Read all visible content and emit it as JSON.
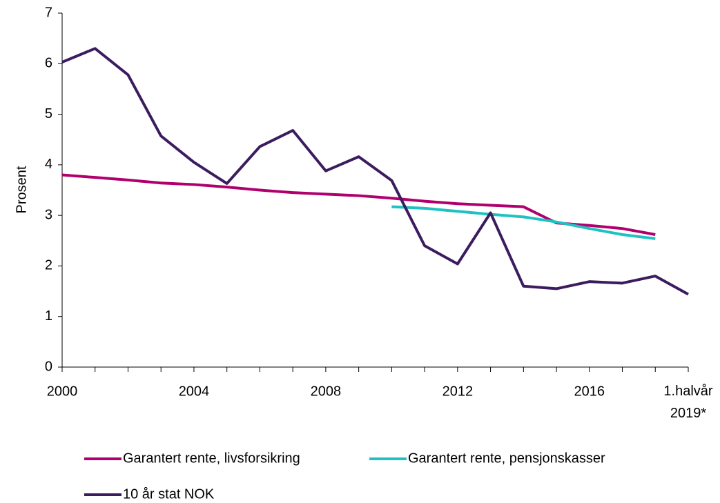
{
  "chart_data": {
    "type": "line",
    "y_label": "Prosent",
    "categories": [
      "2000",
      null,
      null,
      null,
      "2004",
      null,
      null,
      null,
      "2008",
      null,
      null,
      null,
      "2012",
      null,
      null,
      null,
      "2016",
      null,
      null,
      "1.halvår 2019*"
    ],
    "series": [
      {
        "name": "Garantert rente, livsforsikring",
        "color": "#b0006e",
        "values": [
          3.8,
          3.75,
          3.7,
          3.64,
          3.61,
          3.56,
          3.5,
          3.45,
          3.42,
          3.39,
          3.34,
          3.28,
          3.23,
          3.2,
          3.17,
          2.85,
          2.8,
          2.74,
          2.62,
          null
        ]
      },
      {
        "name": "Garantert rente, pensjonskasser",
        "color": "#1fc2c2",
        "values": [
          null,
          null,
          null,
          null,
          null,
          null,
          null,
          null,
          null,
          null,
          3.17,
          3.14,
          3.08,
          3.02,
          2.97,
          2.87,
          2.74,
          2.62,
          2.54,
          null
        ]
      },
      {
        "name": "10 år stat NOK",
        "color": "#3b1c5e",
        "values": [
          6.03,
          6.3,
          5.78,
          4.57,
          4.05,
          3.63,
          4.36,
          4.68,
          3.88,
          4.16,
          3.69,
          2.4,
          2.04,
          3.05,
          1.6,
          1.55,
          1.69,
          1.66,
          1.8,
          1.44
        ]
      }
    ],
    "ylim": [
      0,
      7
    ],
    "yticks": [
      0,
      1,
      2,
      3,
      4,
      5,
      6,
      7
    ],
    "grid": false
  }
}
